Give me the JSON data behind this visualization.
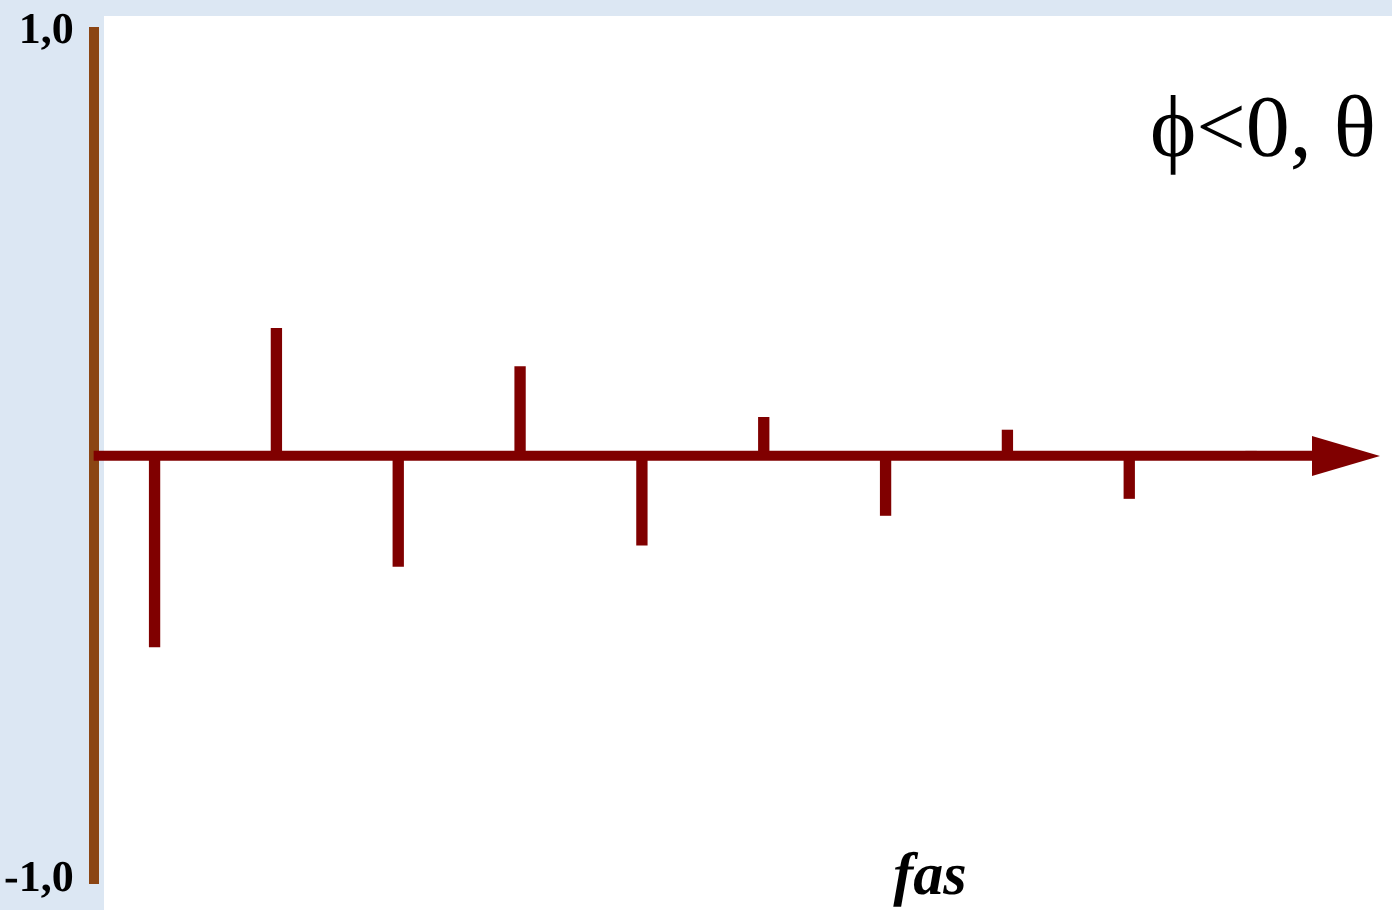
{
  "chart_data": {
    "type": "bar",
    "annotations": [
      "ϕ<0, θ"
    ],
    "xlabel": "fas",
    "categories": [
      null,
      null,
      null,
      null,
      null,
      null,
      null,
      null,
      null,
      null
    ],
    "values": [
      -0.45,
      0.3,
      -0.26,
      0.21,
      -0.21,
      0.09,
      -0.14,
      0.06,
      -0.1,
      0.01
    ],
    "color": "#800000",
    "ylim": [
      -1,
      1
    ],
    "yticks": [
      {
        "value": 1,
        "label": "1,0"
      },
      {
        "value": -1,
        "label": "-1,0"
      }
    ],
    "ref_lines": [
      {
        "axis": "y",
        "value": 0,
        "color": "#800000"
      }
    ],
    "grid": false,
    "legend": false
  }
}
